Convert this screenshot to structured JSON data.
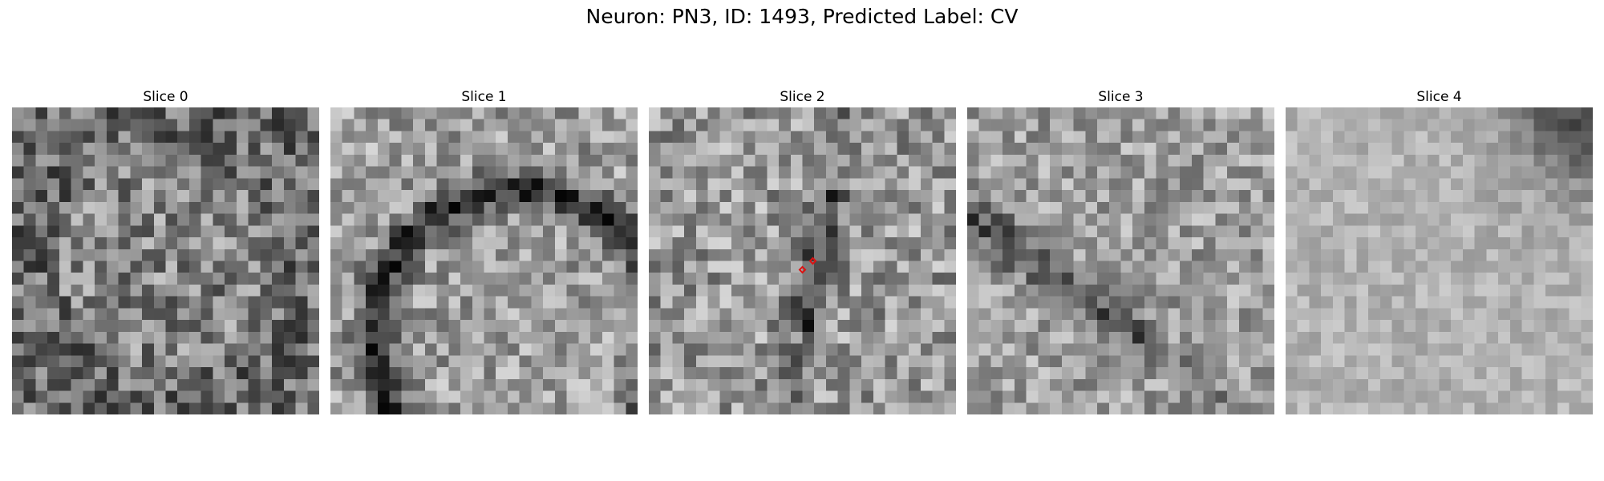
{
  "suptitle": "Neuron: PN3, ID: 1493, Predicted Label: CV",
  "colors": {
    "marker": "#dd1111"
  },
  "grid_size": 26,
  "panels": [
    {
      "title": "Slice 0",
      "mean": 0.52,
      "contrast": 0.26,
      "dark_feature": "speckle",
      "markers": []
    },
    {
      "title": "Slice 1",
      "mean": 0.62,
      "contrast": 0.22,
      "dark_feature": "arc",
      "markers": []
    },
    {
      "title": "Slice 2",
      "mean": 0.6,
      "contrast": 0.24,
      "dark_feature": "band",
      "markers": [
        [
          0.5,
          0.53
        ],
        [
          0.535,
          0.5
        ]
      ]
    },
    {
      "title": "Slice 3",
      "mean": 0.62,
      "contrast": 0.2,
      "dark_feature": "diagonal",
      "markers": []
    },
    {
      "title": "Slice 4",
      "mean": 0.7,
      "contrast": 0.1,
      "dark_feature": "corner",
      "markers": []
    }
  ]
}
